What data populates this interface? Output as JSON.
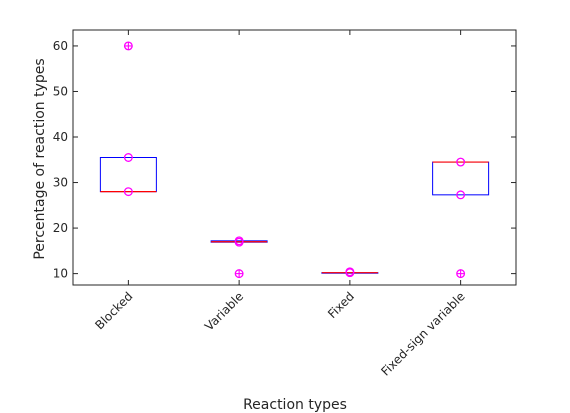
{
  "chart_data": {
    "type": "box",
    "xlabel": "Reaction types",
    "ylabel": "Percentage of reaction types",
    "ylim": [
      7.5,
      63.5
    ],
    "yticks": [
      10,
      20,
      30,
      40,
      50,
      60
    ],
    "categories": [
      "Blocked",
      "Variable",
      "Fixed",
      "Fixed-sign variable"
    ],
    "boxes": [
      {
        "category": "Blocked",
        "q1": 28,
        "median": 28,
        "q3": 35.5,
        "points": [
          28,
          35.5
        ],
        "outliers": [
          60
        ]
      },
      {
        "category": "Variable",
        "q1": 16.9,
        "median": 17,
        "q3": 17.2,
        "points": [
          16.9,
          17.2
        ],
        "outliers": [
          10
        ]
      },
      {
        "category": "Fixed",
        "q1": 10.2,
        "median": 10.2,
        "q3": 10.2,
        "points": [
          10.4,
          10.2
        ],
        "outliers": []
      },
      {
        "category": "Fixed-sign variable",
        "q1": 27.3,
        "median": 34.5,
        "q3": 34.5,
        "points": [
          34.5,
          27.3
        ],
        "outliers": [
          10
        ]
      }
    ],
    "grid": false,
    "legend": "none",
    "colors": {
      "box": "#0000ff",
      "median": "#ff0000",
      "marker": "#ff00ff",
      "axis": "#262626"
    }
  }
}
